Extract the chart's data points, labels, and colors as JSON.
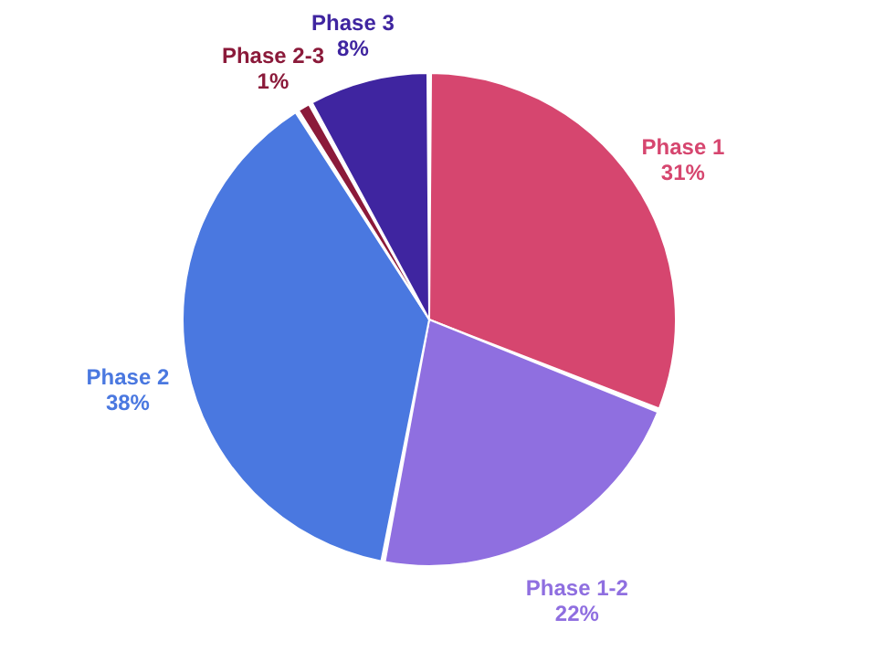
{
  "chart_data": {
    "type": "pie",
    "categories": [
      "Phase 1",
      "Phase 1-2",
      "Phase 2",
      "Phase 2-3",
      "Phase 3"
    ],
    "values": [
      31,
      22,
      38,
      1,
      8
    ],
    "value_labels": [
      "31%",
      "22%",
      "38%",
      "1%",
      "8%"
    ],
    "colors": [
      "#d6466f",
      "#8f6fe0",
      "#4a78e0",
      "#8b1a3a",
      "#3f25a0"
    ],
    "legend": false
  }
}
